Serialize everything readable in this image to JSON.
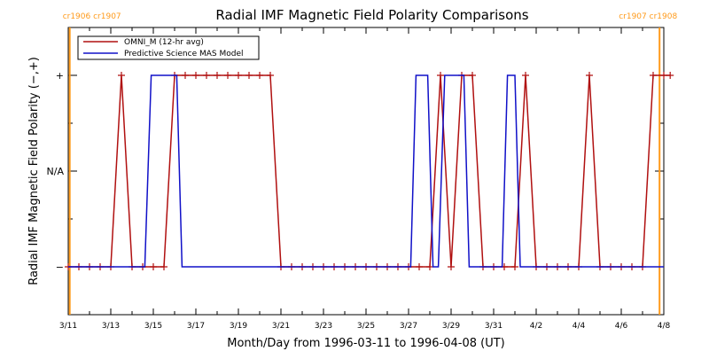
{
  "chart_data": {
    "type": "line",
    "title": "Radial IMF Magnetic Field Polarity Comparisons",
    "xlabel": "Month/Day from 1996-03-11 to 1996-04-08 (UT)",
    "ylabel": "Radial IMF Magnetic Field Polarity (−,+)",
    "x_start_date": "1996-03-11",
    "xlim": [
      0,
      28
    ],
    "ylim": [
      -1.5,
      1.5
    ],
    "x_ticks": [
      0,
      2,
      4,
      6,
      8,
      10,
      12,
      14,
      16,
      18,
      20,
      22,
      24,
      26,
      28
    ],
    "x_tick_labels": [
      "3/11",
      "3/13",
      "3/15",
      "3/17",
      "3/19",
      "3/21",
      "3/23",
      "3/25",
      "3/27",
      "3/29",
      "3/31",
      "4/2",
      "4/4",
      "4/6",
      "4/8"
    ],
    "y_ticks": [
      -1,
      0,
      1
    ],
    "y_tick_labels": [
      "−",
      "N/A",
      "+"
    ],
    "legend": {
      "placement": "top-left",
      "entries": [
        {
          "label": "OMNI_M (12-hr avg)",
          "color": "#b01010",
          "marker": "plus"
        },
        {
          "label": "Predictive Science MAS Model",
          "color": "#1010c8",
          "marker": "none"
        }
      ]
    },
    "series": [
      {
        "name": "OMNI_M (12-hr avg)",
        "color": "#b01010",
        "marker": "plus",
        "x": [
          0.0,
          0.5,
          1.0,
          1.5,
          2.0,
          2.5,
          3.0,
          3.5,
          4.0,
          4.5,
          5.0,
          5.5,
          6.0,
          6.5,
          7.0,
          7.5,
          8.0,
          8.5,
          9.0,
          9.5,
          10.0,
          10.5,
          11.0,
          11.5,
          12.0,
          12.5,
          13.0,
          13.5,
          14.0,
          14.5,
          15.0,
          15.5,
          16.0,
          16.5,
          17.0,
          17.5,
          18.0,
          18.5,
          19.0,
          19.5,
          20.0,
          20.5,
          21.0,
          21.5,
          22.0,
          22.5,
          23.0,
          23.5,
          24.0,
          24.5,
          25.0,
          25.5,
          26.0,
          26.5,
          27.0,
          27.5,
          28.0,
          28.3
        ],
        "y": [
          -1,
          -1,
          -1,
          -1,
          -1,
          1,
          -1,
          -1,
          -1,
          -1,
          1,
          1,
          1,
          1,
          1,
          1,
          1,
          1,
          1,
          1,
          -1,
          -1,
          -1,
          -1,
          -1,
          -1,
          -1,
          -1,
          -1,
          -1,
          -1,
          -1,
          -1,
          -1,
          -1,
          1,
          -1,
          1,
          1,
          -1,
          -1,
          -1,
          -1,
          1,
          -1,
          -1,
          -1,
          -1,
          -1,
          1,
          -1,
          -1,
          -1,
          -1,
          -1,
          1,
          1,
          1
        ]
      },
      {
        "name": "Predictive Science MAS Model",
        "color": "#1010c8",
        "marker": "none",
        "x": [
          0.0,
          3.6,
          3.9,
          5.1,
          5.35,
          16.1,
          16.35,
          16.9,
          17.15,
          17.4,
          17.7,
          18.6,
          18.85,
          19.5,
          19.8,
          20.4,
          20.65,
          21.0,
          21.25,
          28.0
        ],
        "y": [
          -1,
          -1,
          1,
          1,
          -1,
          -1,
          1,
          1,
          -1,
          -1,
          1,
          1,
          -1,
          -1,
          -1,
          -1,
          1,
          1,
          -1,
          -1
        ]
      }
    ],
    "vertical_markers": [
      {
        "x": 0.07,
        "color": "#ff9a1a",
        "label": "cr1906 cr1907"
      },
      {
        "x": 27.8,
        "color": "#ff9a1a",
        "label": "cr1907 cr1908"
      }
    ]
  }
}
